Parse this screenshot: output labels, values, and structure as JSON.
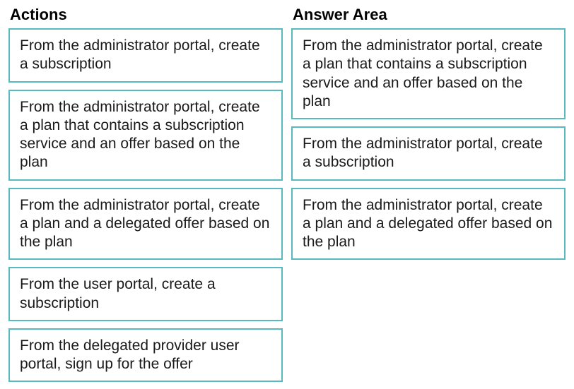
{
  "headings": {
    "actions": "Actions",
    "answer": "Answer Area"
  },
  "actions_column": [
    "From the administrator portal, create a subscription",
    "From the administrator portal, create a plan that contains a subscription service and an offer based on the plan",
    "From the administrator portal, create a plan and a delegated offer based on the plan",
    "From the user portal, create a subscription",
    "From the delegated provider user portal, sign up for the offer"
  ],
  "answer_column": [
    "From the administrator portal, create a plan that contains a subscription service and an offer based on the plan",
    "From the administrator portal, create a subscription",
    "From the administrator portal, create a plan and a delegated offer based on the plan"
  ],
  "styling": {
    "box_border_color": "#5ab9bd",
    "box_border_width": 2,
    "font_family": "Arial",
    "heading_fontsize": 22,
    "heading_fontweight": "bold",
    "item_fontsize": 21,
    "text_color": "#1a1a1a",
    "background_color": "#ffffff"
  }
}
